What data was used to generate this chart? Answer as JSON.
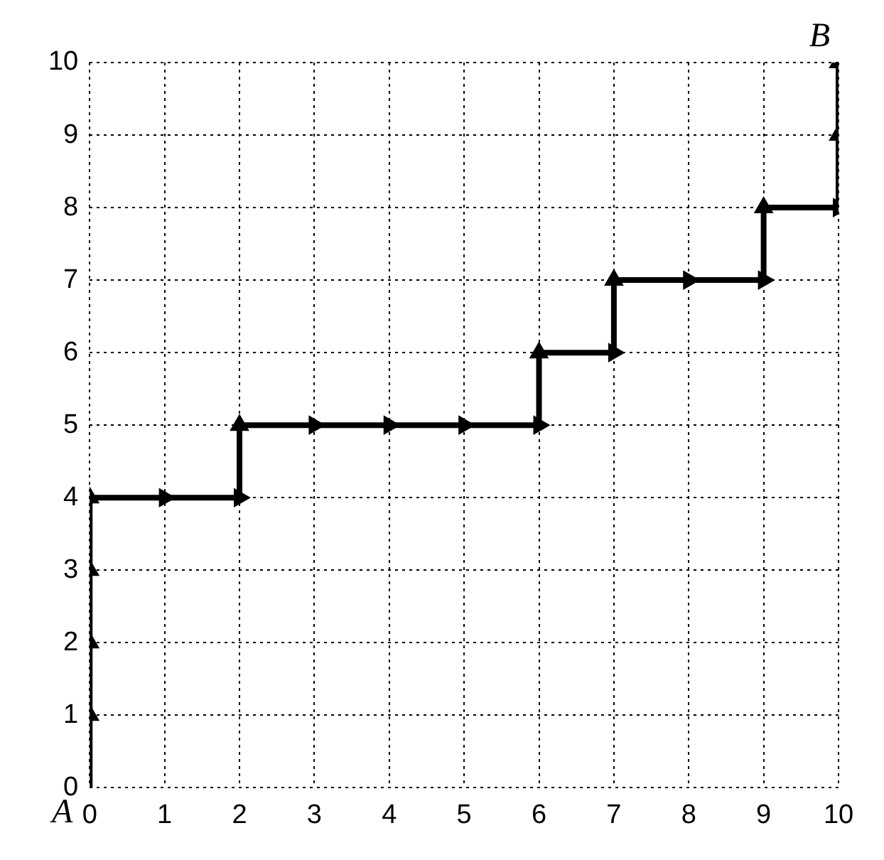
{
  "chart_data": {
    "type": "line",
    "x": [
      0,
      0,
      0,
      0,
      0,
      1,
      2,
      2,
      3,
      4,
      5,
      6,
      6,
      7,
      7,
      8,
      9,
      9,
      10,
      10,
      10
    ],
    "series": [
      {
        "color": "#000000",
        "values": [
          0,
          1,
          2,
          3,
          4,
          4,
          4,
          5,
          5,
          5,
          5,
          5,
          6,
          6,
          7,
          7,
          7,
          8,
          8,
          9,
          10
        ]
      }
    ],
    "xlim": [
      0,
      10
    ],
    "ylim": [
      0,
      10
    ],
    "xticks": [
      0,
      1,
      2,
      3,
      4,
      5,
      6,
      7,
      8,
      9,
      10
    ],
    "yticks": [
      0,
      1,
      2,
      3,
      4,
      5,
      6,
      7,
      8,
      9,
      10
    ],
    "grid": true,
    "legend": false,
    "marker": "triangle",
    "line_style": "solid",
    "annotations": [
      {
        "text": "A",
        "x": 0,
        "y": 0
      },
      {
        "text": "B",
        "x": 10,
        "y": 10
      }
    ]
  }
}
